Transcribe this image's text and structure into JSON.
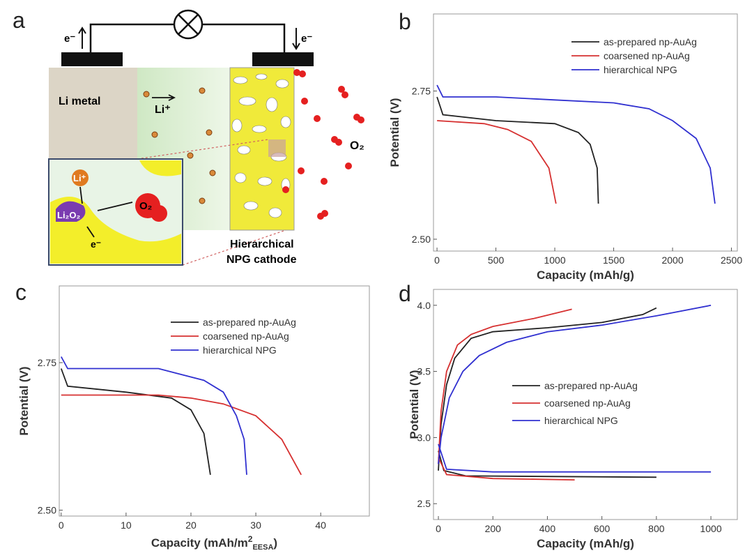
{
  "diagram": {
    "label": "a",
    "anode": "Li metal",
    "e_left": "e⁻",
    "e_right": "e⁻",
    "li_ion": "Li⁺",
    "o2": "O₂",
    "inset_li": "Li⁺",
    "inset_o2": "O₂",
    "li2o2": "Li₂O₂",
    "inset_e": "e⁻",
    "cathode": [
      "Hierarchical",
      "NPG cathode"
    ]
  },
  "chart_data": [
    {
      "type": "line",
      "label": "b",
      "xlabel": "Capacity (mAh/g)",
      "ylabel": "Potential (V)",
      "xlim": [
        -30,
        2550
      ],
      "ylim": [
        2.48,
        2.88
      ],
      "xticks": [
        0,
        500,
        1000,
        1500,
        2000,
        2500
      ],
      "yticks": [
        {
          "value": 2.5,
          "label": "2.50"
        },
        2.75
      ],
      "series": [
        {
          "name": "as-prepared np-AuAg",
          "color": "#222222",
          "x": [
            0,
            50,
            500,
            1000,
            1200,
            1300,
            1360,
            1370
          ],
          "values": [
            2.74,
            2.71,
            2.7,
            2.695,
            2.68,
            2.66,
            2.62,
            2.56
          ]
        },
        {
          "name": "coarsened np-AuAg",
          "color": "#d63030",
          "x": [
            0,
            400,
            600,
            800,
            950,
            1010
          ],
          "values": [
            2.7,
            2.695,
            2.685,
            2.665,
            2.62,
            2.56
          ]
        },
        {
          "name": "hierarchical NPG",
          "color": "#3030d0",
          "x": [
            0,
            50,
            500,
            1000,
            1500,
            1800,
            2000,
            2200,
            2320,
            2360
          ],
          "values": [
            2.76,
            2.74,
            2.74,
            2.735,
            2.73,
            2.72,
            2.7,
            2.67,
            2.62,
            2.56
          ]
        }
      ]
    },
    {
      "type": "line",
      "label": "c",
      "xlabel": [
        "Capacity (mAh/m",
        "2",
        "EESA",
        ")"
      ],
      "ylabel": "Potential (V)",
      "xlim": [
        -0.3,
        47.5
      ],
      "ylim": [
        2.49,
        2.88
      ],
      "xticks": [
        0,
        10,
        20,
        30,
        40
      ],
      "yticks": [
        {
          "value": 2.5,
          "label": "2.50"
        },
        2.75
      ],
      "series": [
        {
          "name": "as-prepared np-AuAg",
          "color": "#222222",
          "x": [
            0,
            1,
            10,
            17,
            20,
            22,
            23
          ],
          "values": [
            2.74,
            2.71,
            2.7,
            2.69,
            2.67,
            2.63,
            2.56
          ]
        },
        {
          "name": "coarsened np-AuAg",
          "color": "#d63030",
          "x": [
            0,
            15,
            20,
            25,
            30,
            34,
            37
          ],
          "values": [
            2.695,
            2.695,
            2.69,
            2.68,
            2.66,
            2.62,
            2.56
          ]
        },
        {
          "name": "hierarchical NPG",
          "color": "#3030d0",
          "x": [
            0,
            1,
            15,
            22,
            25,
            27,
            28.2,
            28.6
          ],
          "values": [
            2.76,
            2.74,
            2.74,
            2.72,
            2.7,
            2.66,
            2.62,
            2.56
          ]
        }
      ]
    },
    {
      "type": "line",
      "label": "d",
      "xlabel": "Capacity (mAh/g)",
      "ylabel": "Potential (V)",
      "xlim": [
        -18,
        1097
      ],
      "ylim": [
        2.38,
        4.12
      ],
      "xticks": [
        0,
        200,
        400,
        600,
        800,
        1000
      ],
      "yticks": [
        2.5,
        {
          "value": 3,
          "label": "3.0"
        },
        3.5,
        {
          "value": 4,
          "label": "4.0"
        }
      ],
      "series": [
        {
          "name": "as-prepared np-AuAg",
          "color": "#222222",
          "x": [
            0,
            20,
            100,
            800,
            null,
            0,
            10,
            30,
            60,
            120,
            200,
            400,
            600,
            750,
            800
          ],
          "values": [
            2.9,
            2.75,
            2.71,
            2.7,
            null,
            2.75,
            3.1,
            3.4,
            3.6,
            3.75,
            3.8,
            3.83,
            3.87,
            3.93,
            3.98
          ]
        },
        {
          "name": "coarsened np-AuAg",
          "color": "#d63030",
          "x": [
            0,
            30,
            200,
            500,
            null,
            0,
            10,
            30,
            70,
            120,
            200,
            350,
            490
          ],
          "values": [
            2.85,
            2.72,
            2.69,
            2.68,
            null,
            2.8,
            3.2,
            3.5,
            3.7,
            3.78,
            3.84,
            3.9,
            3.97
          ]
        },
        {
          "name": "hierarchical NPG",
          "color": "#3030d0",
          "x": [
            0,
            30,
            200,
            1000,
            null,
            0,
            10,
            40,
            90,
            150,
            250,
            400,
            600,
            800,
            1000
          ],
          "values": [
            2.95,
            2.76,
            2.74,
            2.74,
            null,
            2.8,
            3.0,
            3.3,
            3.5,
            3.62,
            3.72,
            3.8,
            3.85,
            3.92,
            4.0
          ]
        }
      ]
    }
  ]
}
